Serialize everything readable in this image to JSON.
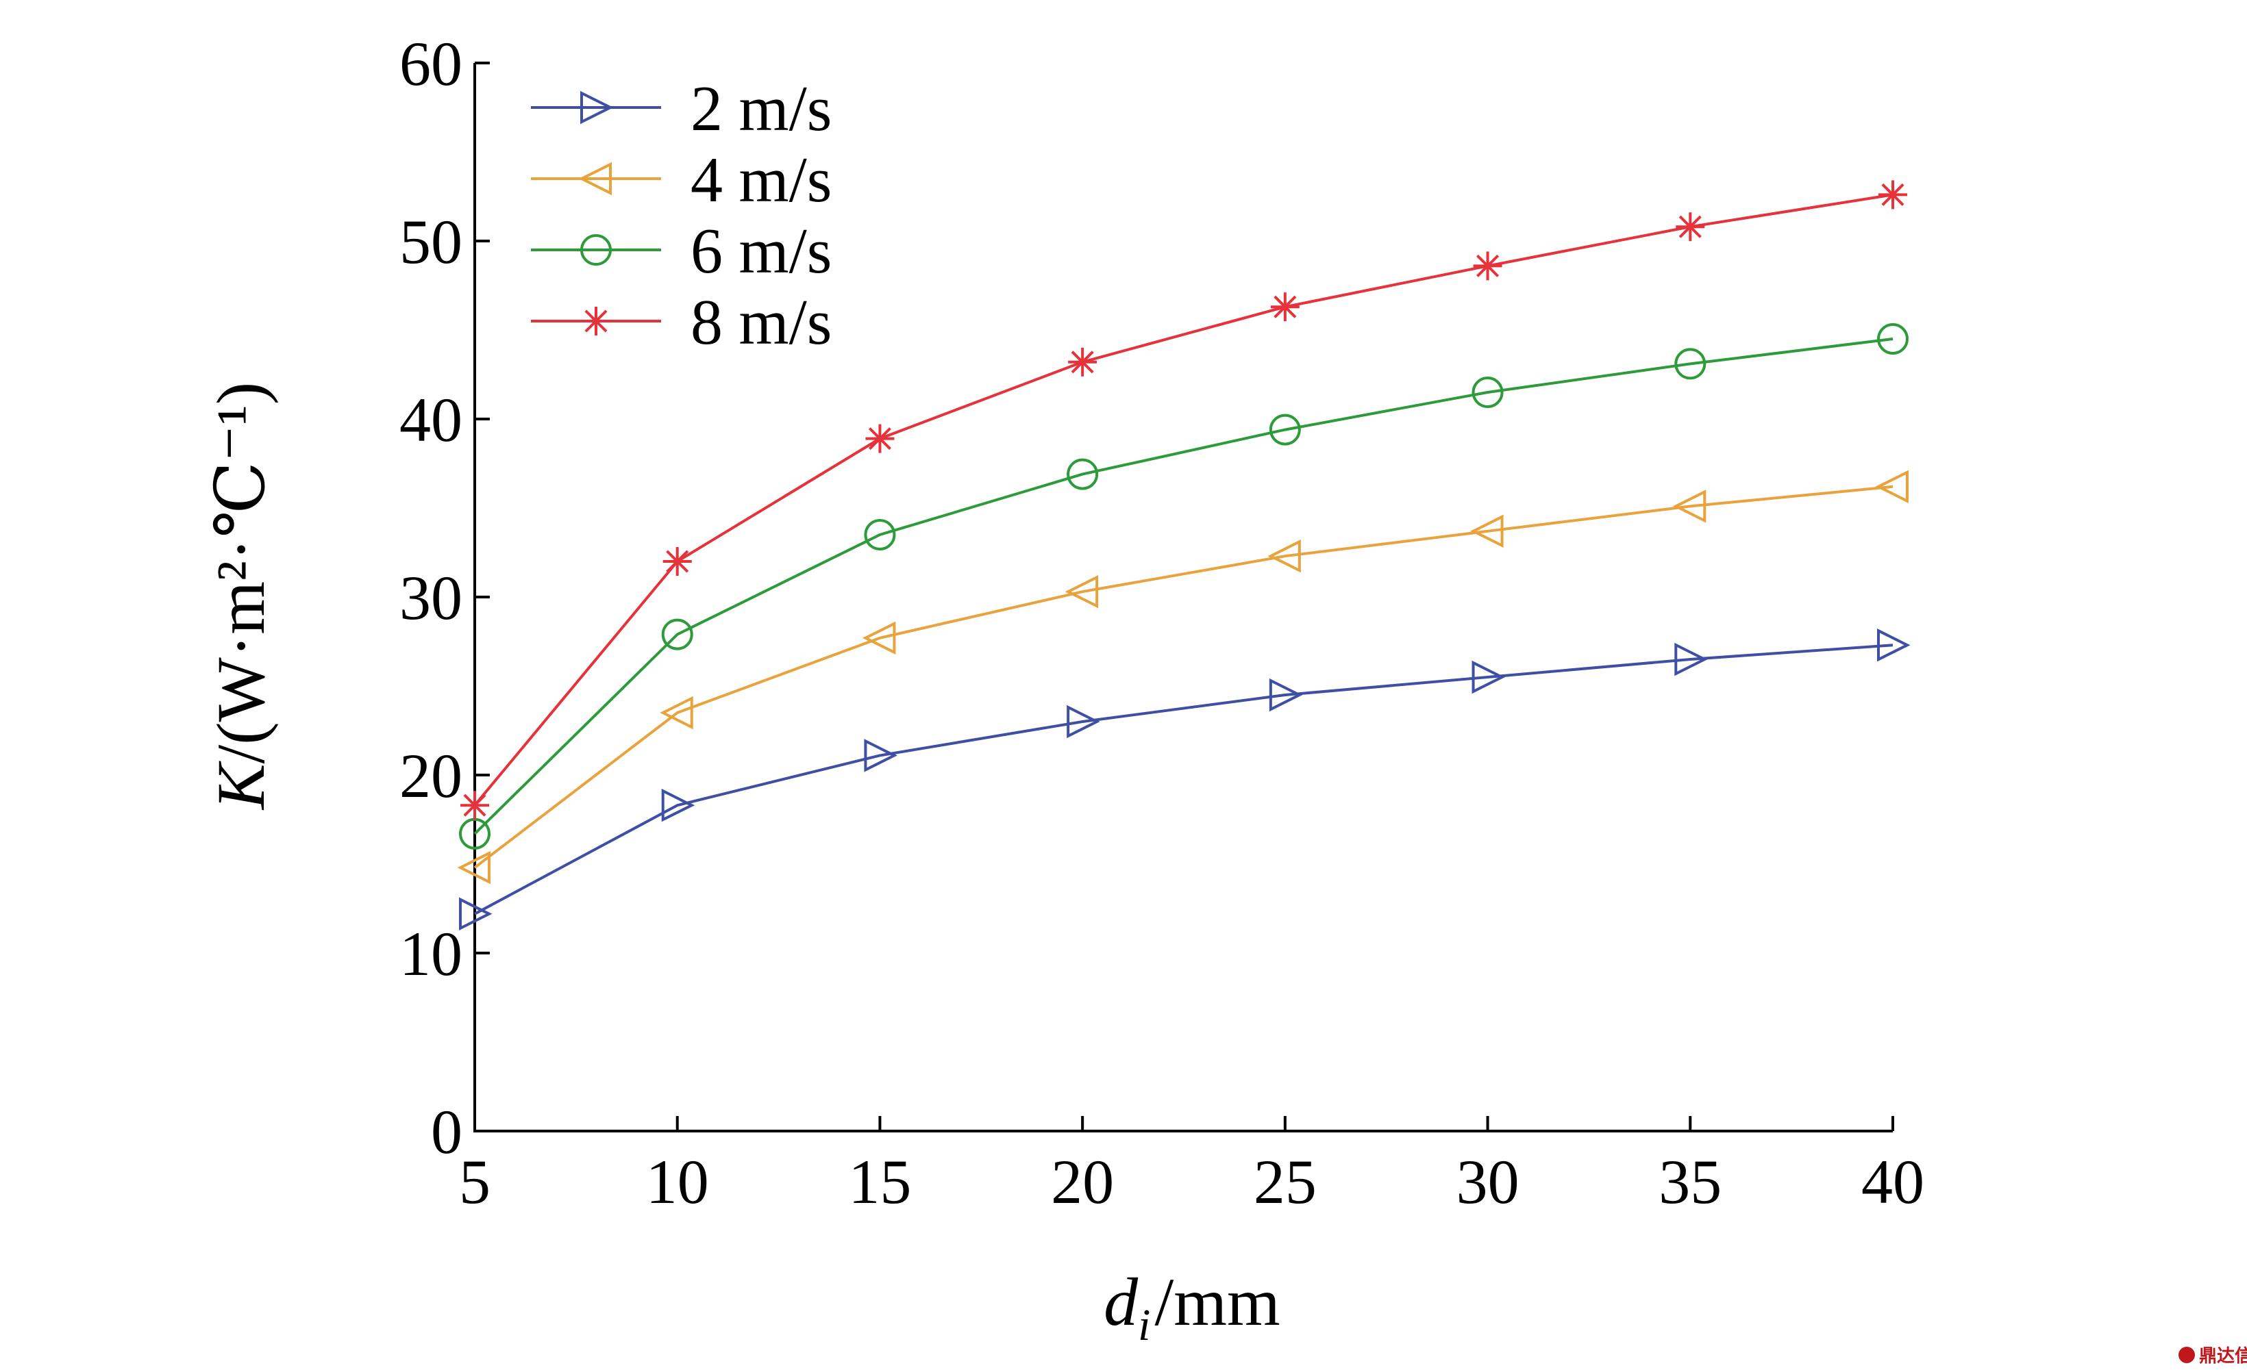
{
  "chart_data": {
    "type": "line",
    "x": [
      5,
      10,
      15,
      20,
      25,
      30,
      35,
      40
    ],
    "xlim": [
      5,
      40
    ],
    "ylim": [
      0,
      60
    ],
    "xticks": [
      "5",
      "10",
      "15",
      "20",
      "25",
      "30",
      "35",
      "40"
    ],
    "yticks": [
      "0",
      "10",
      "20",
      "30",
      "40",
      "50",
      "60"
    ],
    "xlabel": {
      "italic": "d",
      "subscript": "i",
      "rest": "/mm"
    },
    "ylabel": {
      "italic": "K",
      "rest": "/(W·m²·℃⁻¹)"
    },
    "legend_position": "top-left",
    "grid": false,
    "series": [
      {
        "name": "2 m/s",
        "marker": "triangle-right",
        "color": "#3f4fa3",
        "values": [
          12.2,
          18.3,
          21.1,
          23.0,
          24.5,
          25.5,
          26.5,
          27.3
        ]
      },
      {
        "name": "4 m/s",
        "marker": "triangle-left",
        "color": "#e8a33c",
        "values": [
          14.8,
          23.5,
          27.7,
          30.3,
          32.3,
          33.7,
          35.1,
          36.2
        ]
      },
      {
        "name": "6 m/s",
        "marker": "circle",
        "color": "#2e9b3b",
        "values": [
          16.7,
          27.9,
          33.5,
          36.9,
          39.4,
          41.5,
          43.1,
          44.5
        ]
      },
      {
        "name": "8 m/s",
        "marker": "asterisk",
        "color": "#e5323b",
        "values": [
          18.3,
          32.0,
          38.9,
          43.2,
          46.3,
          48.6,
          50.8,
          52.6
        ]
      }
    ]
  },
  "watermark": {
    "text": "鼎达信"
  }
}
